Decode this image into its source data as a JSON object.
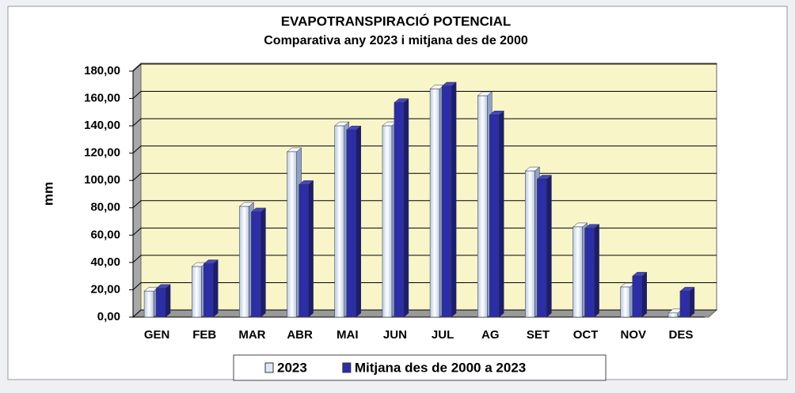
{
  "chart_data": {
    "type": "bar",
    "title": "EVAPOTRANSPIRACIÓ POTENCIAL",
    "subtitle": "Comparativa any 2023 i mitjana des de 2000",
    "y_label": "mm",
    "categories": [
      "GEN",
      "FEB",
      "MAR",
      "ABR",
      "MAI",
      "JUN",
      "JUL",
      "AG",
      "SET",
      "OCT",
      "NOV",
      "DES"
    ],
    "series": [
      {
        "name": "2023",
        "color": "#dfe8f8",
        "values": [
          19,
          37,
          81,
          121,
          140,
          140,
          167,
          162,
          107,
          66,
          22,
          3
        ]
      },
      {
        "name": "Mitjana des de 2000 a 2023",
        "color": "#2b2ea6",
        "values": [
          21,
          39,
          77,
          97,
          137,
          157,
          169,
          148,
          101,
          65,
          30,
          19
        ]
      }
    ],
    "ylim": [
      0,
      180
    ],
    "yticks": [
      {
        "value": 0,
        "label": "0,00"
      },
      {
        "value": 20,
        "label": "20,00"
      },
      {
        "value": 40,
        "label": "40,00"
      },
      {
        "value": 60,
        "label": "60,00"
      },
      {
        "value": 80,
        "label": "80,00"
      },
      {
        "value": 100,
        "label": "100,00"
      },
      {
        "value": 120,
        "label": "120,00"
      },
      {
        "value": 140,
        "label": "140,00"
      },
      {
        "value": 160,
        "label": "160,00"
      },
      {
        "value": 180,
        "label": "180,00"
      }
    ],
    "grid": true,
    "legend": "bottom"
  }
}
